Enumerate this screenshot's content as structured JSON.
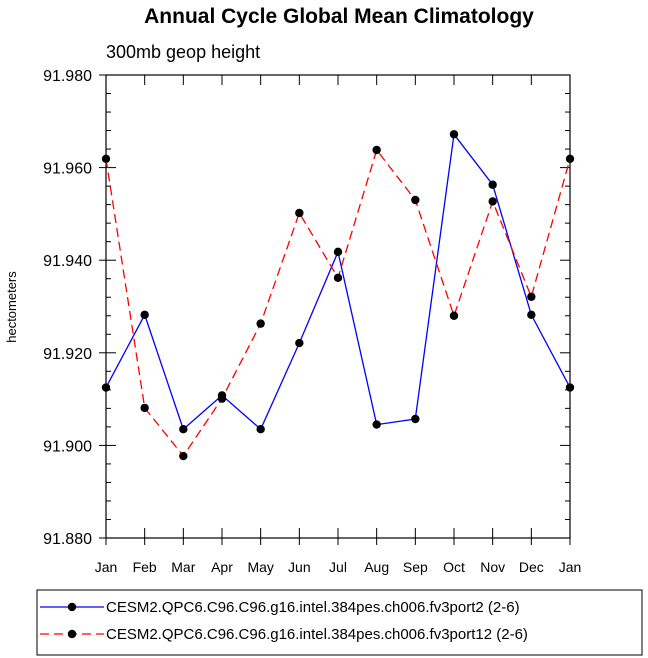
{
  "chart_data": {
    "type": "line",
    "title": "Annual Cycle Global Mean Climatology",
    "subtitle": "300mb geop height",
    "xlabel": "",
    "ylabel": "hectometers",
    "categories": [
      "Jan",
      "Feb",
      "Mar",
      "Apr",
      "May",
      "Jun",
      "Jul",
      "Aug",
      "Sep",
      "Oct",
      "Nov",
      "Dec",
      "Jan"
    ],
    "ylim": [
      91.88,
      91.98
    ],
    "yticks": [
      "91.880",
      "91.900",
      "91.920",
      "91.940",
      "91.960",
      "91.980"
    ],
    "grid": false,
    "legend_position": "bottom",
    "series": [
      {
        "name": "CESM2.QPC6.C96.C96.g16.intel.384pes.ch006.fv3port2 (2-6)",
        "color": "#0000ff",
        "dash": "solid",
        "values": [
          91.9125,
          91.9282,
          91.9035,
          91.9108,
          91.9035,
          91.9221,
          91.9418,
          91.9045,
          91.9057,
          91.9672,
          91.9563,
          91.9282,
          91.9125
        ]
      },
      {
        "name": "CESM2.QPC6.C96.C96.g16.intel.384pes.ch006.fv3port12 (2-6)",
        "color": "#ff0000",
        "dash": "dashed",
        "values": [
          91.9619,
          91.9081,
          91.8977,
          91.9101,
          91.9263,
          91.9502,
          91.9362,
          91.9638,
          91.953,
          91.928,
          91.9527,
          91.9321,
          91.9619
        ]
      }
    ]
  }
}
